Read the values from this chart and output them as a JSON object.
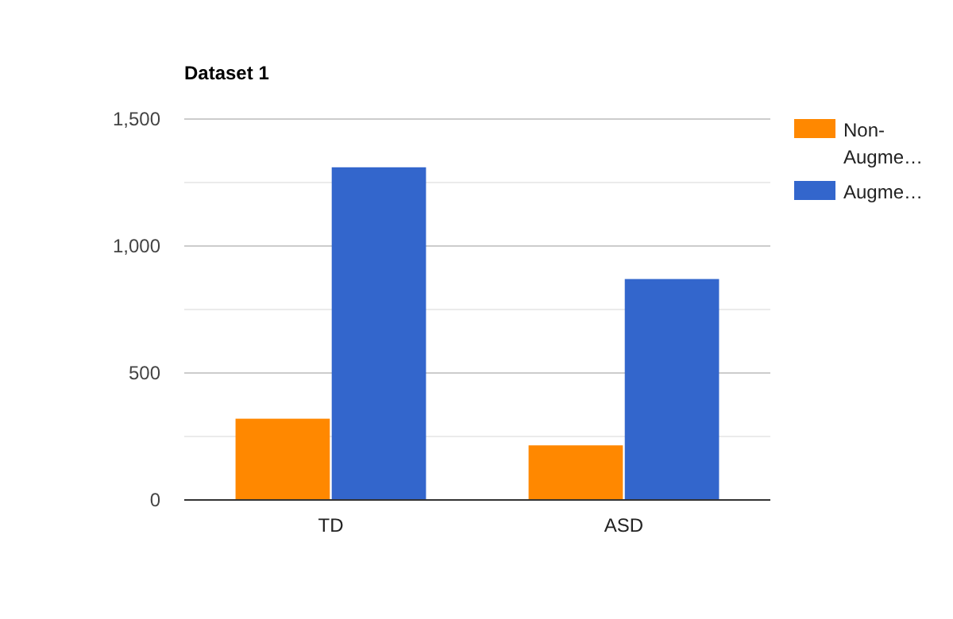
{
  "chart_data": {
    "type": "bar",
    "title": "Dataset 1",
    "categories": [
      "TD",
      "ASD"
    ],
    "series": [
      {
        "name": "Non-Augme…",
        "color": "#ff8800",
        "values": [
          320,
          215
        ]
      },
      {
        "name": "Augme…",
        "color": "#3366cc",
        "values": [
          1310,
          870
        ]
      }
    ],
    "ylim": [
      0,
      1500
    ],
    "yticks": [
      0,
      {
        "value": 250,
        "label": null
      },
      500,
      {
        "value": 750,
        "label": null
      },
      {
        "value": 1000,
        "label": "1,000"
      },
      {
        "value": 1250,
        "label": null
      },
      {
        "value": 1500,
        "label": "1,500"
      }
    ],
    "grid": true,
    "legend": "right"
  }
}
